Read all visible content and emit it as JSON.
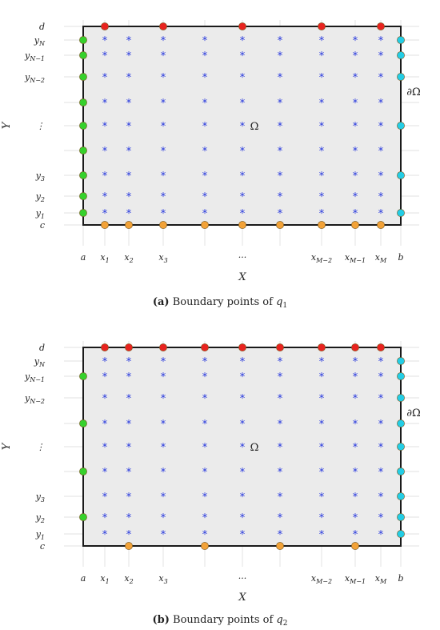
{
  "tick_labels": {
    "y": {
      "d": "d",
      "yN": [
        "y",
        "N"
      ],
      "yN1": [
        "y",
        "N−1"
      ],
      "yN2": [
        "y",
        "N−2"
      ],
      "dots": "⋮",
      "y3": [
        "y",
        "3"
      ],
      "y2": [
        "y",
        "2"
      ],
      "y1": [
        "y",
        "1"
      ],
      "c": "c"
    },
    "x": {
      "a": "a",
      "x1": [
        "x",
        "1"
      ],
      "x2": [
        "x",
        "2"
      ],
      "x3": [
        "x",
        "3"
      ],
      "dots": "···",
      "xM2": [
        "x",
        "M−2"
      ],
      "xM1": [
        "x",
        "M−1"
      ],
      "xM": [
        "x",
        "M"
      ],
      "b": "b"
    }
  },
  "axis_labels": {
    "x": "X",
    "y": "Y"
  },
  "region_label": "Ω",
  "boundary_label": "∂Ω",
  "grid_marker": "*",
  "colors": {
    "top": "#e8231f",
    "bottom": "#f2a238",
    "left": "#36d12c",
    "right": "#23cde6",
    "interior": "#2233dd",
    "domain_fill": "#ebebeb",
    "border": "#1a1a1a"
  },
  "panels": [
    {
      "id": "a",
      "caption": {
        "tag": "(a)",
        "text": "Boundary points of",
        "var": "q",
        "sub": "1"
      },
      "markers": {
        "top_columns": [
          1,
          3,
          5,
          7,
          9
        ],
        "bottom_columns": [
          1,
          2,
          3,
          4,
          5,
          6,
          7,
          8,
          9
        ],
        "left_rows": [
          1,
          2,
          3,
          4,
          5,
          6,
          7,
          8,
          9
        ],
        "right_rows": [
          1,
          2,
          3,
          5,
          7,
          9
        ]
      }
    },
    {
      "id": "b",
      "caption": {
        "tag": "(b)",
        "text": "Boundary points of",
        "var": "q",
        "sub": "2"
      },
      "markers": {
        "top_columns": [
          1,
          2,
          3,
          4,
          5,
          6,
          7,
          8,
          9
        ],
        "bottom_columns": [
          2,
          4,
          6,
          8
        ],
        "left_rows": [
          2,
          4,
          6,
          8
        ],
        "right_rows": [
          1,
          2,
          3,
          4,
          5,
          6,
          7,
          8,
          9
        ]
      }
    }
  ]
}
